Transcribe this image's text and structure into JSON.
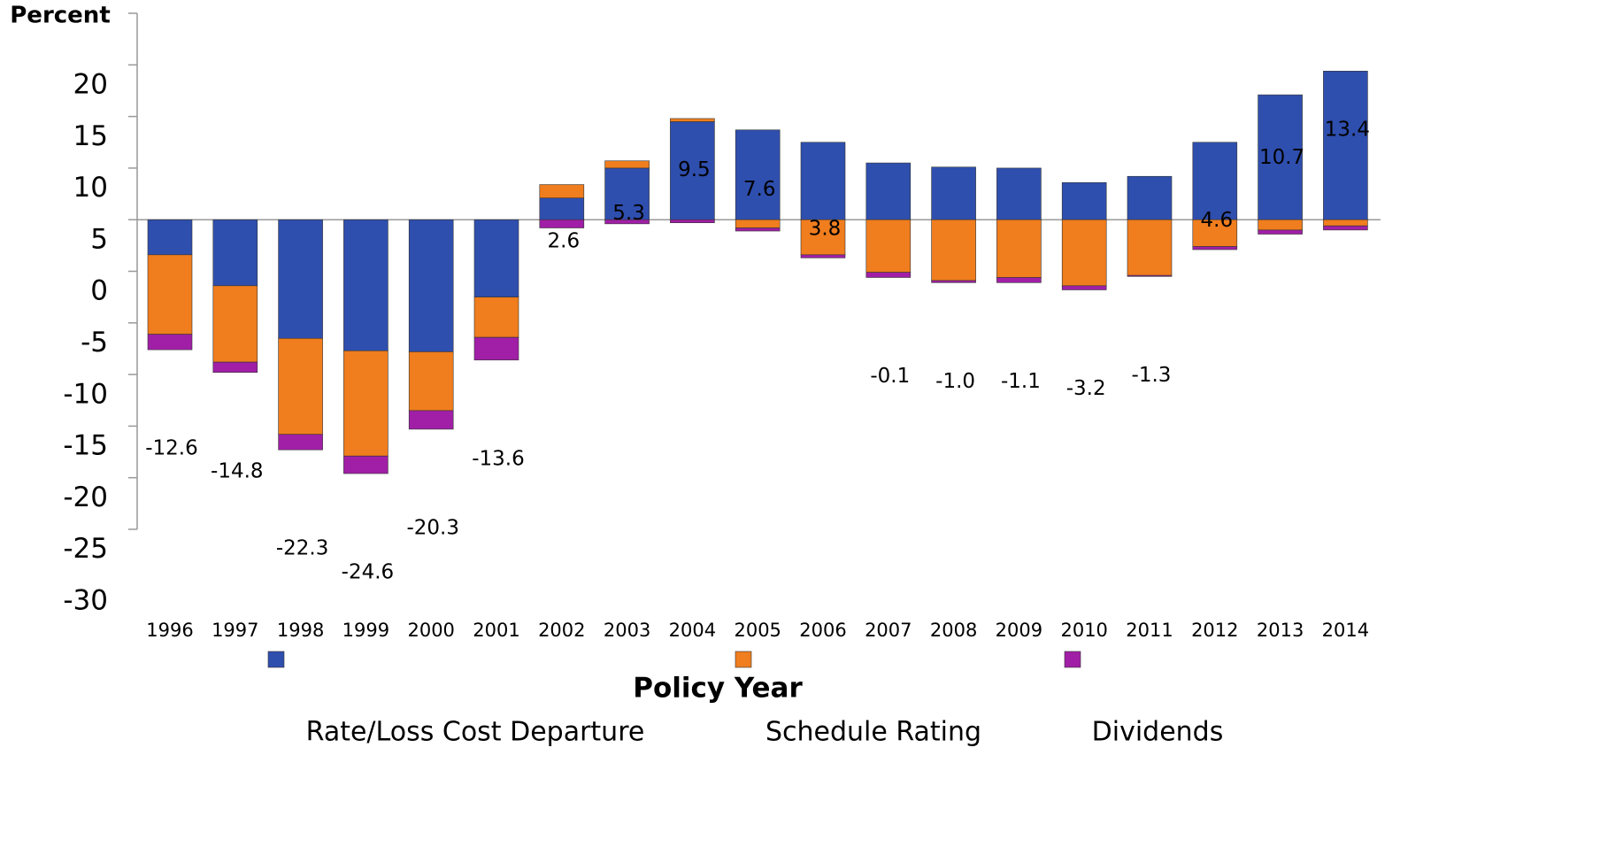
{
  "chart_data": {
    "type": "stacked_bar",
    "y_axis_label": "Percent",
    "x_axis_label": "Policy Year",
    "categories": [
      "1996",
      "1997",
      "1998",
      "1999",
      "2000",
      "2001",
      "2002",
      "2003",
      "2004",
      "2005",
      "2006",
      "2007",
      "2008",
      "2009",
      "2010",
      "2011",
      "2012",
      "2013",
      "2014"
    ],
    "series": [
      {
        "name": "Rate/Loss Cost Departure",
        "color": "#2f4fae",
        "values": [
          -3.4,
          -6.4,
          -11.5,
          -12.7,
          -12.8,
          -7.5,
          2.1,
          5.0,
          9.5,
          8.7,
          7.5,
          5.5,
          5.1,
          5.0,
          3.6,
          4.2,
          7.5,
          12.1,
          14.4
        ]
      },
      {
        "name": "Schedule Rating",
        "color": "#f07d1e",
        "values": [
          -7.7,
          -7.4,
          -9.3,
          -10.2,
          -5.7,
          -3.9,
          1.3,
          0.7,
          0.3,
          -0.8,
          -3.4,
          -5.1,
          -5.9,
          -5.6,
          -6.4,
          -5.4,
          -2.6,
          -1.0,
          -0.6
        ]
      },
      {
        "name": "Dividends",
        "color": "#a01fa6",
        "values": [
          -1.5,
          -1.0,
          -1.5,
          -1.7,
          -1.8,
          -2.2,
          -0.8,
          -0.4,
          -0.3,
          -0.3,
          -0.3,
          -0.5,
          -0.2,
          -0.5,
          -0.4,
          -0.1,
          -0.3,
          -0.4,
          -0.4
        ]
      }
    ],
    "totals": [
      -12.6,
      -14.8,
      -22.3,
      -24.6,
      -20.3,
      -13.6,
      2.6,
      5.3,
      9.5,
      7.6,
      3.8,
      -0.1,
      -1.0,
      -1.1,
      -3.2,
      -1.3,
      4.6,
      10.7,
      13.4
    ],
    "value_labels": [
      "-12.6",
      "-14.8",
      "-22.3",
      "-24.6",
      "-20.3",
      "-13.6",
      "2.6",
      "5.3",
      "9.5",
      "7.6",
      "3.8",
      "-0.1",
      "-1.0",
      "-1.1",
      "-3.2",
      "-1.3",
      "4.6",
      "10.7",
      "13.4"
    ],
    "ylim": [
      -30,
      20
    ],
    "yticks": [
      20,
      15,
      10,
      5,
      0,
      -5,
      -10,
      -15,
      -20,
      -25,
      -30
    ]
  }
}
